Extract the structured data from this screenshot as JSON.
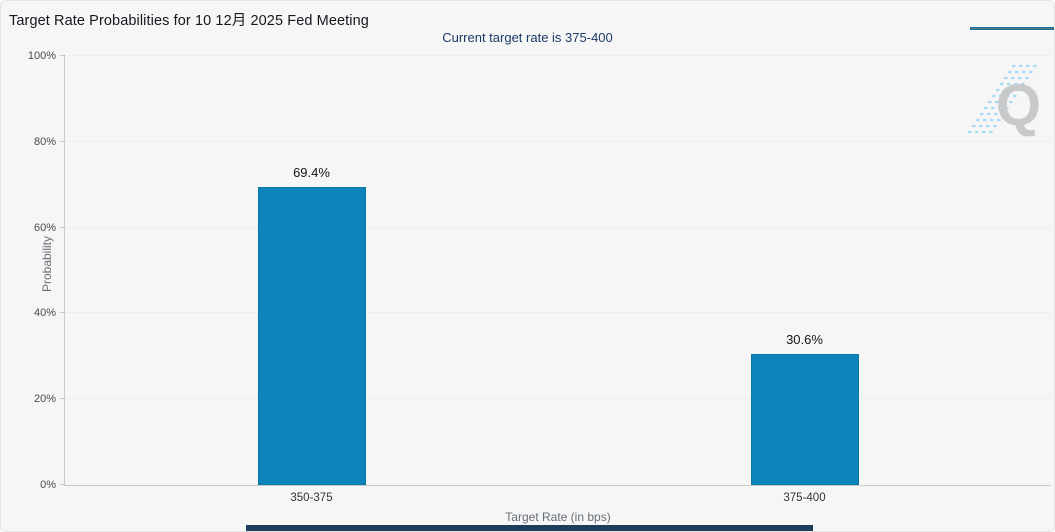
{
  "header": {
    "title": "Target Rate Probabilities for 10 12月 2025 Fed Meeting",
    "subtitle": "Current target rate is 375-400"
  },
  "menu": {
    "icon": "hamburger-menu-icon"
  },
  "watermark": {
    "letter": "Q"
  },
  "chart_data": {
    "type": "bar",
    "title": "Target Rate Probabilities for 10 12月 2025 Fed Meeting",
    "subtitle": "Current target rate is 375-400",
    "categories": [
      "350-375",
      "375-400"
    ],
    "values": [
      69.4,
      30.6
    ],
    "value_labels": [
      "69.4%",
      "30.6%"
    ],
    "xlabel": "Target Rate (in bps)",
    "ylabel": "Probability",
    "ylim": [
      0,
      100
    ],
    "yticks": [
      0,
      20,
      40,
      60,
      80,
      100
    ],
    "ytick_labels": [
      "0%",
      "20%",
      "40%",
      "60%",
      "80%",
      "100%"
    ],
    "grid": "horizontal-dotted",
    "legend": "none",
    "bar_color": "#0e85ba"
  },
  "colors": {
    "background": "#f6f6f6",
    "bar": "#0e85ba",
    "subtitle_text": "#1b3a66",
    "axis_line": "#c9c9c9",
    "gridline": "#d7d7d7",
    "watermark_letter": "#c7c9cb",
    "watermark_hatch": "#a6dcf2",
    "bottom_bar": "#1e3c5c"
  }
}
